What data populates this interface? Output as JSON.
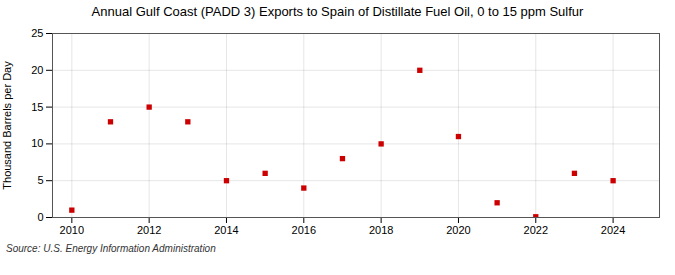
{
  "chart_data": {
    "type": "scatter",
    "title": "Annual Gulf Coast (PADD 3) Exports to Spain of Distillate Fuel Oil, 0 to 15 ppm Sulfur",
    "ylabel": "Thousand Barrels per Day",
    "source": "Source: U.S. Energy Information Administration",
    "x": [
      2010,
      2011,
      2012,
      2013,
      2014,
      2015,
      2016,
      2017,
      2018,
      2019,
      2020,
      2021,
      2022,
      2023,
      2024
    ],
    "values": [
      1,
      13,
      15,
      13,
      5,
      6,
      4,
      8,
      10,
      20,
      11,
      2,
      0.1,
      6,
      5
    ],
    "color": "#cc0000",
    "marker": "square",
    "xlim": [
      2009.5,
      2025.2
    ],
    "ylim": [
      0,
      25
    ],
    "xticks": [
      2010,
      2012,
      2014,
      2016,
      2018,
      2020,
      2022,
      2024
    ],
    "yticks": [
      0,
      5,
      10,
      15,
      20,
      25
    ],
    "grid": true
  }
}
